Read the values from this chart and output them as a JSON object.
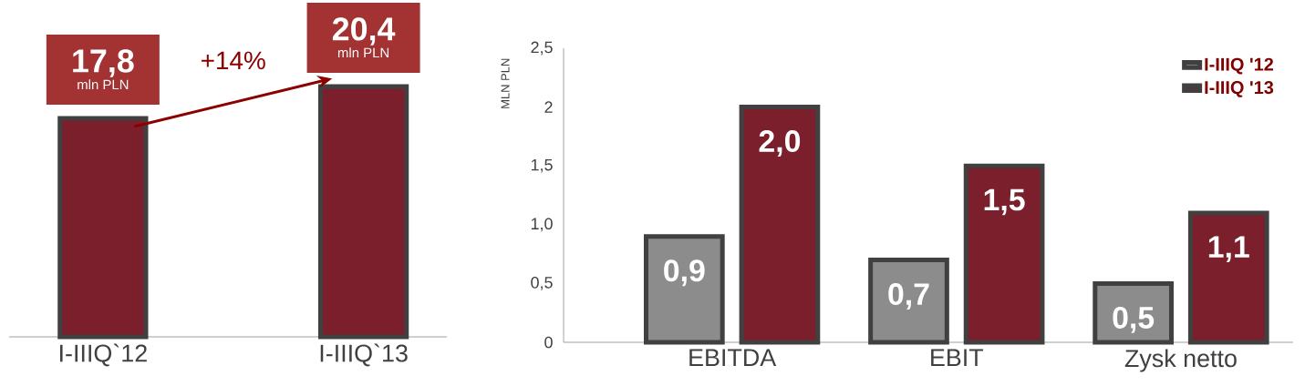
{
  "chart_data": [
    {
      "type": "bar",
      "categories": [
        "I-IIIQ`12",
        "I-IIIQ`13"
      ],
      "values": [
        17.8,
        20.4
      ],
      "color": "#7a1f2b",
      "value_labels": [
        "17,8",
        "20,4"
      ],
      "annotations": [
        "+14%",
        "mln PLN",
        "mln PLN"
      ]
    },
    {
      "type": "bar",
      "ylabel": "MLN PLN",
      "categories": [
        "EBITDA",
        "EBIT",
        "Zysk netto"
      ],
      "series": [
        {
          "name": "I-IIIQ '12",
          "color": "#8c8c8c",
          "values": [
            0.9,
            0.7,
            0.5
          ],
          "value_labels": [
            "0,9",
            "0,7",
            "0,5"
          ]
        },
        {
          "name": "I-IIIQ '13",
          "color": "#7a1f2b",
          "values": [
            2.0,
            1.5,
            1.1
          ],
          "value_labels": [
            "2,0",
            "1,5",
            "1,1"
          ]
        }
      ],
      "ylim": [
        0,
        2.5
      ],
      "yticks": [
        0,
        {
          "value": 0.5,
          "label": "0,5"
        },
        {
          "value": 1,
          "label": "1,0"
        },
        {
          "value": 1.5,
          "label": "1,5"
        },
        2,
        {
          "value": 2.5,
          "label": "2,5"
        }
      ],
      "legend": "top right",
      "grid": false
    }
  ]
}
